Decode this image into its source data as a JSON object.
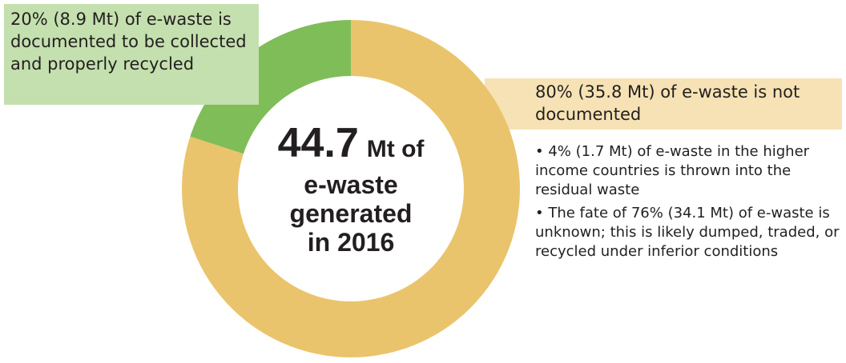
{
  "chart_data": {
    "type": "donut",
    "categories": [
      "20% (8.9 Mt) of e-waste is documented to be collected and properly recycled",
      "80% (35.8 Mt) of e-waste is not documented"
    ],
    "values": [
      20,
      80
    ],
    "colors": [
      "#7fbd58",
      "#eac46c"
    ],
    "center": {
      "total": 44.7,
      "lines": [
        "Mt of",
        "e-waste",
        "generated",
        "in 2016"
      ]
    },
    "notes": [
      "4% (1.7 Mt) of e-waste in the higher income countries is thrown into the residual waste",
      "The fate of 76% (34.1 Mt) of e-waste is unknown; this is likely dumped, traded, or recycled under inferior conditions"
    ]
  }
}
